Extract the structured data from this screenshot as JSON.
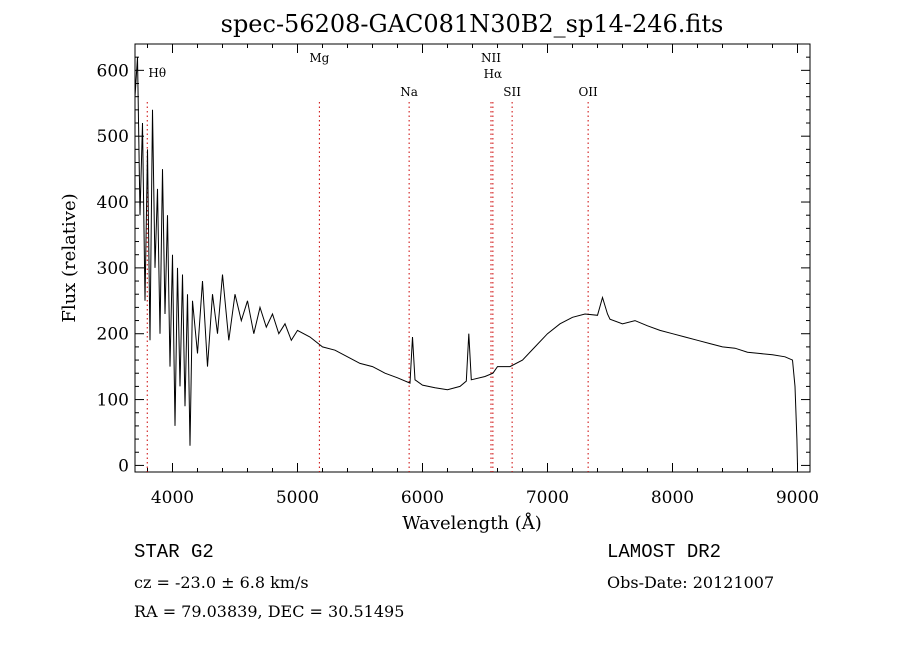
{
  "chart_data": {
    "type": "line",
    "title": "spec-56208-GAC081N30B2_sp14-246.fits",
    "xlabel": "Wavelength (Å)",
    "ylabel": "Flux (relative)",
    "xlim": [
      3700,
      9100
    ],
    "ylim": [
      -10,
      640
    ],
    "xticks": [
      4000,
      5000,
      6000,
      7000,
      8000,
      9000
    ],
    "yticks": [
      0,
      100,
      200,
      300,
      400,
      500,
      600
    ],
    "grid": false,
    "series": [
      {
        "color": "#000000",
        "points": [
          [
            3700,
            560
          ],
          [
            3720,
            620
          ],
          [
            3740,
            380
          ],
          [
            3760,
            520
          ],
          [
            3780,
            250
          ],
          [
            3800,
            480
          ],
          [
            3820,
            190
          ],
          [
            3840,
            540
          ],
          [
            3860,
            300
          ],
          [
            3880,
            420
          ],
          [
            3900,
            200
          ],
          [
            3920,
            450
          ],
          [
            3940,
            230
          ],
          [
            3960,
            380
          ],
          [
            3980,
            150
          ],
          [
            4000,
            320
          ],
          [
            4020,
            60
          ],
          [
            4040,
            300
          ],
          [
            4060,
            120
          ],
          [
            4080,
            290
          ],
          [
            4100,
            90
          ],
          [
            4120,
            260
          ],
          [
            4140,
            30
          ],
          [
            4160,
            250
          ],
          [
            4200,
            170
          ],
          [
            4240,
            280
          ],
          [
            4280,
            150
          ],
          [
            4320,
            260
          ],
          [
            4360,
            200
          ],
          [
            4400,
            290
          ],
          [
            4450,
            190
          ],
          [
            4500,
            260
          ],
          [
            4550,
            220
          ],
          [
            4600,
            250
          ],
          [
            4650,
            200
          ],
          [
            4700,
            240
          ],
          [
            4750,
            210
          ],
          [
            4800,
            230
          ],
          [
            4850,
            200
          ],
          [
            4900,
            215
          ],
          [
            4950,
            190
          ],
          [
            5000,
            205
          ],
          [
            5100,
            195
          ],
          [
            5200,
            180
          ],
          [
            5300,
            175
          ],
          [
            5400,
            165
          ],
          [
            5500,
            155
          ],
          [
            5600,
            150
          ],
          [
            5700,
            140
          ],
          [
            5800,
            133
          ],
          [
            5900,
            125
          ],
          [
            5920,
            195
          ],
          [
            5940,
            130
          ],
          [
            6000,
            122
          ],
          [
            6100,
            118
          ],
          [
            6200,
            115
          ],
          [
            6300,
            120
          ],
          [
            6350,
            128
          ],
          [
            6370,
            200
          ],
          [
            6390,
            130
          ],
          [
            6500,
            135
          ],
          [
            6563,
            140
          ],
          [
            6600,
            150
          ],
          [
            6700,
            150
          ],
          [
            6800,
            160
          ],
          [
            6900,
            180
          ],
          [
            7000,
            200
          ],
          [
            7100,
            215
          ],
          [
            7200,
            225
          ],
          [
            7300,
            230
          ],
          [
            7400,
            228
          ],
          [
            7440,
            255
          ],
          [
            7480,
            230
          ],
          [
            7500,
            222
          ],
          [
            7600,
            215
          ],
          [
            7700,
            220
          ],
          [
            7800,
            212
          ],
          [
            7900,
            205
          ],
          [
            8000,
            200
          ],
          [
            8100,
            195
          ],
          [
            8200,
            190
          ],
          [
            8300,
            185
          ],
          [
            8400,
            180
          ],
          [
            8500,
            178
          ],
          [
            8600,
            172
          ],
          [
            8700,
            170
          ],
          [
            8800,
            168
          ],
          [
            8900,
            165
          ],
          [
            8960,
            160
          ],
          [
            8980,
            120
          ],
          [
            8995,
            40
          ],
          [
            9000,
            0
          ]
        ]
      }
    ],
    "lines": [
      {
        "label": "Hθ",
        "x": 3798,
        "color": "#cc0000"
      },
      {
        "label": "Mg",
        "x": 5175,
        "color": "#cc0000"
      },
      {
        "label": "Na",
        "x": 5893,
        "color": "#cc0000"
      },
      {
        "label": "NII",
        "x": 6548,
        "color": "#cc0000"
      },
      {
        "label": "Hα",
        "x": 6563,
        "color": "#cc0000"
      },
      {
        "label": "SII",
        "x": 6717,
        "color": "#cc0000"
      },
      {
        "label": "OII",
        "x": 7325,
        "color": "#cc0000"
      }
    ]
  },
  "info": {
    "left_big": "STAR   G2",
    "cz": "cz = -23.0 ± 6.8 km/s",
    "radec": "RA =  79.03839, DEC =  30.51495",
    "right_big": "LAMOST DR2",
    "obs_date": "Obs-Date: 20121007"
  }
}
